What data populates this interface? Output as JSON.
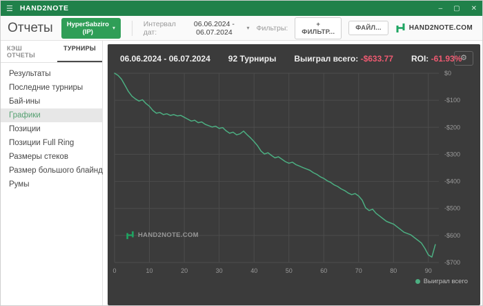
{
  "titlebar": {
    "app": "HAND2NOTE"
  },
  "icons": {
    "menu": "☰",
    "minimize": "–",
    "maximize": "▢",
    "close": "✕",
    "chevron_down": "▾",
    "gear": "⚙",
    "legend_dot": "●"
  },
  "toolbar": {
    "page_title": "Отчеты",
    "player_button": "HyperSabziro (IP)",
    "interval_label": "Интервал дат:",
    "interval_value": "06.06.2024 - 06.07.2024",
    "filters_label": "Фильтры:",
    "filter_button": "+ ФИЛЬТР...",
    "file_button": "ФАЙЛ...",
    "brand": "HAND2NOTE.COM"
  },
  "sidebar": {
    "tabs": [
      {
        "label": "КЭШ ОТЧЕТЫ",
        "active": false
      },
      {
        "label": "ТУРНИРЫ",
        "active": true
      }
    ],
    "items": [
      "Результаты",
      "Последние турниры",
      "Бай-ины",
      "Графики",
      "Позиции",
      "Позиции Full Ring",
      "Размеры стеков",
      "Размер большого блайнда",
      "Румы"
    ],
    "selected_item": "Графики"
  },
  "panel": {
    "date_range": "06.06.2024 - 06.07.2024",
    "tournaments": "92 Турниры",
    "won_label": "Выиграл всего:",
    "won_value": "-$633.77",
    "roi_label": "ROI:",
    "roi_value": "-61.93%",
    "watermark": "HAND2NOTE.COM",
    "legend": "Выиграл всего"
  },
  "chart_data": {
    "type": "line",
    "title": "",
    "series_name": "Выиграл всего",
    "x_is_tournament_index": true,
    "values": [
      0,
      -8,
      -22,
      -45,
      -68,
      -85,
      -95,
      -103,
      -98,
      -112,
      -122,
      -138,
      -148,
      -145,
      -153,
      -150,
      -156,
      -153,
      -158,
      -156,
      -163,
      -170,
      -177,
      -174,
      -183,
      -180,
      -189,
      -194,
      -199,
      -196,
      -204,
      -201,
      -213,
      -222,
      -218,
      -228,
      -224,
      -214,
      -227,
      -239,
      -253,
      -268,
      -288,
      -299,
      -294,
      -304,
      -313,
      -309,
      -318,
      -327,
      -333,
      -329,
      -338,
      -343,
      -349,
      -354,
      -359,
      -368,
      -374,
      -383,
      -389,
      -398,
      -404,
      -413,
      -419,
      -428,
      -434,
      -443,
      -449,
      -445,
      -454,
      -469,
      -498,
      -508,
      -503,
      -518,
      -528,
      -538,
      -548,
      -553,
      -558,
      -568,
      -578,
      -588,
      -593,
      -598,
      -608,
      -618,
      -628,
      -648,
      -672,
      -680,
      -633.77
    ],
    "xlim": [
      0,
      93
    ],
    "ylim": [
      -700,
      0
    ],
    "x_tick_values": [
      0,
      10,
      20,
      30,
      40,
      50,
      60,
      70,
      80,
      90
    ],
    "y_tick_values": [
      0,
      -100,
      -200,
      -300,
      -400,
      -500,
      -600,
      -700
    ],
    "y_tick_labels": [
      "$0",
      "-$100",
      "-$200",
      "-$300",
      "-$400",
      "-$500",
      "-$600",
      "-$700"
    ],
    "grid": true,
    "legend_position": "bottom-right",
    "line_color": "#4caf82",
    "grid_color": "#4d4d4d",
    "axis_label_color": "#9a9a9a",
    "background_color": "#3b3b3b",
    "negative_value_color": "#ee5a71"
  }
}
